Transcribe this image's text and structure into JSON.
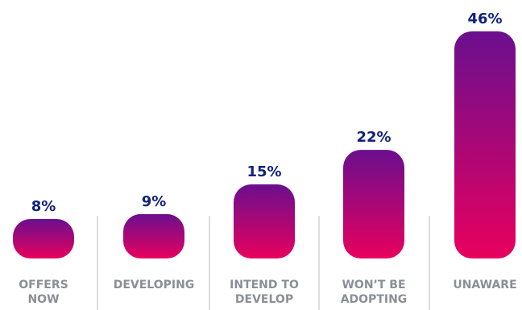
{
  "chart_data": {
    "type": "bar",
    "categories": [
      [
        "OFFERS",
        "NOW"
      ],
      [
        "DEVELOPING"
      ],
      [
        "INTEND TO",
        "DEVELOP"
      ],
      [
        "WON’T BE",
        "ADOPTING"
      ],
      [
        "UNAWARE"
      ]
    ],
    "values": [
      8,
      9,
      15,
      22,
      46
    ],
    "value_labels": [
      "8%",
      "9%",
      "15%",
      "22%",
      "46%"
    ],
    "ylim": [
      0,
      46
    ],
    "grid": false,
    "legend": "none",
    "colors": {
      "bar_top": "#6a0f8e",
      "bar_bottom": "#e8005e",
      "value_text": "#12227a",
      "category_text": "#8a8f96",
      "divider": "#b9bcc2"
    }
  }
}
